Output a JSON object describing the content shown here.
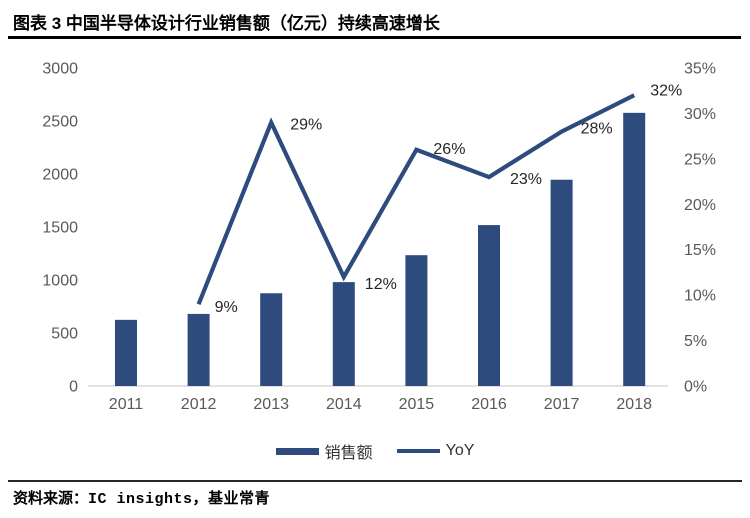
{
  "header": {
    "title": "图表 3 中国半导体设计行业销售额（亿元）持续高速增长"
  },
  "chart_data": {
    "type": "combo",
    "categories": [
      "2011",
      "2012",
      "2013",
      "2014",
      "2015",
      "2016",
      "2017",
      "2018"
    ],
    "series": [
      {
        "name": "销售额",
        "type": "bar",
        "axis": "left",
        "values": [
          624,
          680,
          875,
          980,
          1234,
          1518,
          1946,
          2577
        ]
      },
      {
        "name": "YoY",
        "type": "line",
        "axis": "right",
        "values": [
          null,
          9,
          29,
          12,
          26,
          23,
          28,
          32
        ],
        "point_labels": [
          null,
          "9%",
          "29%",
          "12%",
          "26%",
          "23%",
          "28%",
          "32%"
        ]
      }
    ],
    "left_axis": {
      "min": 0,
      "max": 3000,
      "step": 500,
      "tick_labels": [
        "0",
        "500",
        "1000",
        "1500",
        "2000",
        "2500",
        "3000"
      ]
    },
    "right_axis": {
      "min": 0,
      "max": 35,
      "step": 5,
      "tick_labels": [
        "0%",
        "5%",
        "10%",
        "15%",
        "20%",
        "25%",
        "30%",
        "35%"
      ]
    },
    "legend": {
      "position": "bottom",
      "items": [
        {
          "label": "销售额",
          "swatch": "bar"
        },
        {
          "label": "YoY",
          "swatch": "line"
        }
      ]
    },
    "grid": false,
    "colors": {
      "series": "#2D4B7D",
      "axis_text": "#595959",
      "data_label_text": "#262626",
      "baseline": "#D9D9D9"
    }
  },
  "footer": {
    "label": "资料来源：",
    "sources": "IC insights，基业常青"
  }
}
